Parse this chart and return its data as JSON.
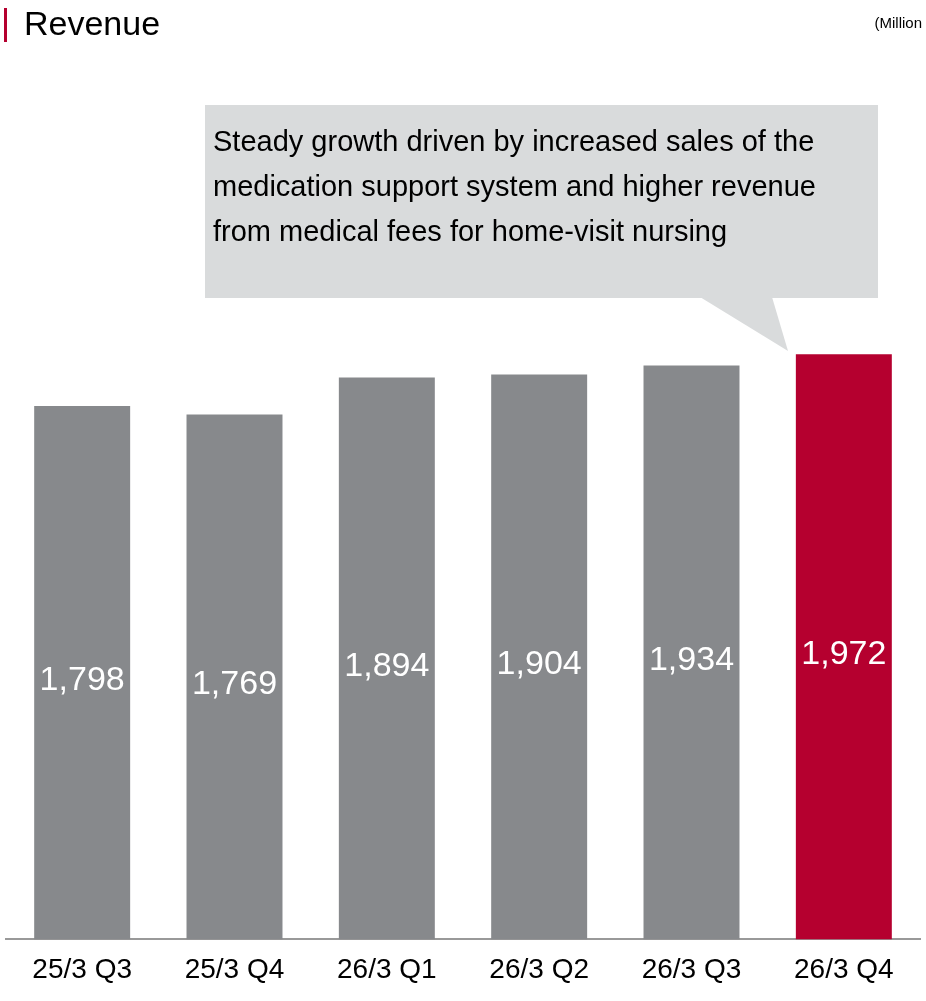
{
  "chart_data": {
    "type": "bar",
    "title": "Revenue",
    "categories": [
      "25/3 Q3",
      "25/3 Q4",
      "26/3 Q1",
      "26/3 Q2",
      "26/3 Q3",
      "26/3 Q4"
    ],
    "values": [
      1798,
      1769,
      1894,
      1904,
      1934,
      1972
    ],
    "colors": [
      "#87898c",
      "#87898c",
      "#87898c",
      "#87898c",
      "#87898c",
      "#b5002f"
    ],
    "value_labels": [
      "1,798",
      "1,769",
      "1,894",
      "1,904",
      "1,934",
      "1,972"
    ],
    "annotations": [
      "(Million",
      "Steady growth driven by increased sales of the medication support system and higher revenue from medical fees for home-visit nursing"
    ],
    "grid": false,
    "legend": false
  }
}
